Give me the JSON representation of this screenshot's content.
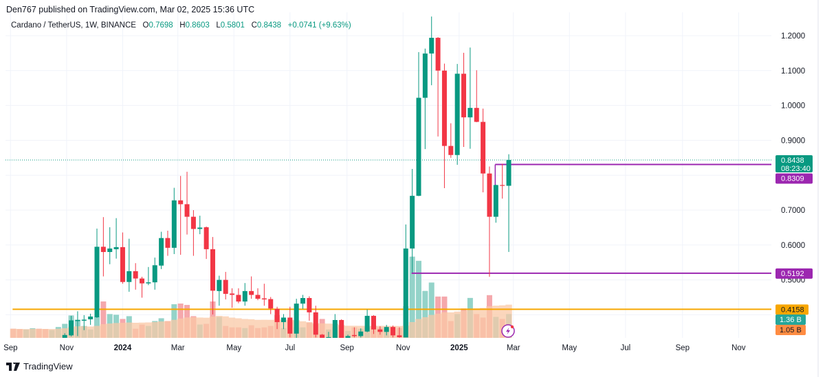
{
  "header": {
    "published": "Den767 published on TradingView.com, Mar 02, 2025 15:36 UTC",
    "symbol": "Cardano / TetherUS, 1W, BINANCE",
    "o_label": "O",
    "o_value": "0.7698",
    "h_label": "H",
    "h_value": "0.8603",
    "l_label": "L",
    "l_value": "0.5801",
    "c_label": "C",
    "c_value": "0.8438",
    "change": "+0.0741 (+9.63%)"
  },
  "footer": {
    "brand": "TradingView",
    "logo_icon": "tradingview-logo-icon"
  },
  "colors": {
    "up": "#089981",
    "down": "#f23645",
    "up_volume": "#94d3c9",
    "down_volume": "#f5a8ac",
    "volume_ma": "#f9c8a6",
    "support": "#f7a600",
    "level": "#9c27b0",
    "grid": "#f0f3fa"
  },
  "chart_data": {
    "type": "candlestick",
    "interval": "1W",
    "price_axis": {
      "ticks": [
        "1.2000",
        "1.1000",
        "1.0000",
        "0.9000",
        "0.7000",
        "0.6000",
        "0.5000"
      ],
      "ylim": [
        0.334,
        1.26
      ]
    },
    "time_axis": [
      {
        "label": "Sep",
        "date": "2023-09-01",
        "bold": false
      },
      {
        "label": "Nov",
        "date": "2023-11-01",
        "bold": false
      },
      {
        "label": "2024",
        "date": "2024-01-01",
        "bold": true
      },
      {
        "label": "Mar",
        "date": "2024-03-01",
        "bold": false
      },
      {
        "label": "May",
        "date": "2024-05-01",
        "bold": false
      },
      {
        "label": "Jul",
        "date": "2024-07-01",
        "bold": false
      },
      {
        "label": "Sep",
        "date": "2024-09-01",
        "bold": false
      },
      {
        "label": "Nov",
        "date": "2024-11-01",
        "bold": false
      },
      {
        "label": "2025",
        "date": "2025-01-01",
        "bold": true
      },
      {
        "label": "Mar",
        "date": "2025-03-01",
        "bold": false
      },
      {
        "label": "May",
        "date": "2025-05-01",
        "bold": false
      },
      {
        "label": "Jul",
        "date": "2025-07-01",
        "bold": false
      },
      {
        "label": "Sep",
        "date": "2025-09-01",
        "bold": false
      },
      {
        "label": "Nov",
        "date": "2025-11-01",
        "bold": false
      }
    ],
    "start_week": "2023-09-04",
    "candles": [
      [
        0.255,
        0.262,
        0.248,
        0.252,
        0.52
      ],
      [
        0.252,
        0.258,
        0.24,
        0.248,
        0.5
      ],
      [
        0.248,
        0.256,
        0.243,
        0.253,
        0.48
      ],
      [
        0.253,
        0.262,
        0.248,
        0.26,
        0.55
      ],
      [
        0.26,
        0.268,
        0.252,
        0.257,
        0.52
      ],
      [
        0.257,
        0.262,
        0.244,
        0.248,
        0.5
      ],
      [
        0.248,
        0.262,
        0.245,
        0.26,
        0.45
      ],
      [
        0.26,
        0.3,
        0.258,
        0.295,
        0.62
      ],
      [
        0.333,
        0.347,
        0.333,
        0.342,
        0.8
      ],
      [
        0.341,
        0.397,
        0.338,
        0.384,
        1.28
      ],
      [
        0.382,
        0.41,
        0.339,
        0.385,
        1.04
      ],
      [
        0.383,
        0.399,
        0.356,
        0.386,
        0.68
      ],
      [
        0.387,
        0.403,
        0.371,
        0.395,
        0.48
      ],
      [
        0.393,
        0.647,
        0.391,
        0.595,
        1.2
      ],
      [
        0.595,
        0.68,
        0.51,
        0.58,
        2.08
      ],
      [
        0.58,
        0.651,
        0.545,
        0.59,
        1.36
      ],
      [
        0.588,
        0.677,
        0.561,
        0.594,
        1.32
      ],
      [
        0.594,
        0.636,
        0.489,
        0.494,
        1.08
      ],
      [
        0.494,
        0.618,
        0.466,
        0.525,
        1.24
      ],
      [
        0.525,
        0.548,
        0.472,
        0.504,
        0.52
      ],
      [
        0.504,
        0.509,
        0.449,
        0.49,
        0.76
      ],
      [
        0.49,
        0.537,
        0.485,
        0.493,
        0.68
      ],
      [
        0.493,
        0.564,
        0.472,
        0.542,
        0.96
      ],
      [
        0.541,
        0.638,
        0.531,
        0.62,
        1.12
      ],
      [
        0.62,
        0.641,
        0.569,
        0.592,
        0.96
      ],
      [
        0.592,
        0.764,
        0.574,
        0.728,
        1.92
      ],
      [
        0.728,
        0.798,
        0.572,
        0.717,
        1.96
      ],
      [
        0.717,
        0.81,
        0.63,
        0.681,
        1.88
      ],
      [
        0.681,
        0.7,
        0.569,
        0.646,
        1.24
      ],
      [
        0.646,
        0.684,
        0.631,
        0.65,
        0.76
      ],
      [
        0.651,
        0.653,
        0.56,
        0.588,
        0.8
      ],
      [
        0.588,
        0.623,
        0.401,
        0.469,
        2.08
      ],
      [
        0.468,
        0.512,
        0.426,
        0.5,
        1.2
      ],
      [
        0.5,
        0.523,
        0.444,
        0.46,
        0.68
      ],
      [
        0.461,
        0.476,
        0.42,
        0.457,
        0.6
      ],
      [
        0.457,
        0.476,
        0.433,
        0.438,
        0.6
      ],
      [
        0.438,
        0.491,
        0.426,
        0.468,
        0.56
      ],
      [
        0.468,
        0.51,
        0.446,
        0.457,
        0.72
      ],
      [
        0.457,
        0.476,
        0.442,
        0.446,
        0.56
      ],
      [
        0.447,
        0.489,
        0.426,
        0.444,
        0.6
      ],
      [
        0.445,
        0.451,
        0.402,
        0.418,
        0.68
      ],
      [
        0.417,
        0.423,
        0.359,
        0.379,
        1.3
      ],
      [
        0.379,
        0.402,
        0.359,
        0.392,
        0.56
      ],
      [
        0.392,
        0.423,
        0.335,
        0.346,
        0.92
      ],
      [
        0.346,
        0.446,
        0.331,
        0.432,
        0.6
      ],
      [
        0.432,
        0.457,
        0.417,
        0.448,
        0.6
      ],
      [
        0.448,
        0.453,
        0.383,
        0.407,
        0.88
      ],
      [
        0.407,
        0.426,
        0.335,
        0.343,
        0.76
      ],
      [
        0.343,
        0.345,
        0.333,
        0.334,
        1.08
      ],
      [
        0.334,
        0.351,
        0.333,
        0.336,
        0.48
      ],
      [
        0.333,
        0.402,
        0.332,
        0.385,
        0.6
      ],
      [
        0.385,
        0.387,
        0.332,
        0.333,
        0.68
      ],
      [
        0.334,
        0.343,
        0.332,
        0.339,
        0.4
      ],
      [
        0.342,
        0.364,
        0.335,
        0.339,
        0.6
      ],
      [
        0.339,
        0.361,
        0.335,
        0.352,
        0.52
      ],
      [
        0.352,
        0.415,
        0.35,
        0.397,
        0.6
      ],
      [
        0.397,
        0.399,
        0.345,
        0.358,
        0.68
      ],
      [
        0.358,
        0.367,
        0.343,
        0.351,
        0.6
      ],
      [
        0.351,
        0.371,
        0.341,
        0.365,
        0.48
      ],
      [
        0.365,
        0.369,
        0.335,
        0.341,
        0.6
      ],
      [
        0.341,
        0.364,
        0.334,
        0.336,
        0.56
      ],
      [
        0.335,
        0.659,
        0.335,
        0.59,
        1.8
      ],
      [
        0.59,
        0.818,
        0.521,
        0.741,
        4.64
      ],
      [
        0.741,
        1.153,
        0.74,
        1.022,
        4.4
      ],
      [
        1.022,
        1.163,
        0.875,
        1.149,
        2.68
      ],
      [
        1.149,
        1.255,
        1.058,
        1.194,
        3.16
      ],
      [
        1.194,
        1.196,
        0.911,
        1.1,
        2.36
      ],
      [
        1.1,
        1.12,
        0.763,
        0.884,
        2.36
      ],
      [
        0.884,
        0.949,
        0.85,
        0.858,
        0.96
      ],
      [
        0.858,
        1.119,
        0.83,
        1.091,
        1.36
      ],
      [
        1.091,
        1.151,
        0.881,
        0.966,
        1.68
      ],
      [
        0.966,
        1.166,
        0.876,
        0.993,
        2.28
      ],
      [
        0.993,
        1.101,
        0.952,
        0.953,
        1.36
      ],
      [
        0.953,
        0.991,
        0.751,
        0.805,
        1.16
      ],
      [
        0.805,
        0.825,
        0.509,
        0.681,
        2.44
      ],
      [
        0.681,
        0.773,
        0.664,
        0.772,
        1.2
      ],
      [
        0.772,
        0.833,
        0.733,
        0.77,
        1.08
      ],
      [
        0.7698,
        0.8603,
        0.5801,
        0.8438,
        1.36
      ]
    ],
    "candle_fields": [
      "open",
      "high",
      "low",
      "close",
      "volume_billions"
    ],
    "levels": [
      {
        "value": 0.8309,
        "label": "0.8309",
        "color": "#9c27b0",
        "from": "2025-02-10"
      },
      {
        "value": 0.5192,
        "label": "0.5192",
        "color": "#9c27b0",
        "from": "2024-11-11"
      },
      {
        "value": 0.4158,
        "label": "0.4158",
        "color": "#f7a600",
        "from": "2023-09-04"
      }
    ],
    "last_price": {
      "label": "0.8438",
      "countdown": "08:23:40",
      "color": "#089981"
    },
    "volume_labels": [
      {
        "label": "1.36 B",
        "color": "#26a69a"
      },
      {
        "label": "1.05 B",
        "color": "#ff8c42"
      }
    ],
    "volume_ma_value": 1.05
  },
  "icons": {
    "replay": "lightning-icon"
  }
}
